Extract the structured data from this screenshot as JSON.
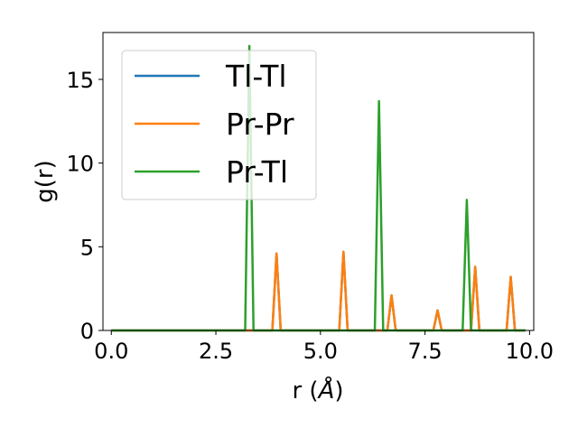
{
  "chart_data": {
    "type": "line",
    "xlabel_main": "r (",
    "xlabel_unit": "Å",
    "xlabel_close": ")",
    "ylabel": "g(r)",
    "xlim": [
      -0.2,
      10.1
    ],
    "ylim": [
      0,
      17.8
    ],
    "xticks": [
      0.0,
      2.5,
      5.0,
      7.5,
      10.0
    ],
    "xtick_labels": [
      "0.0",
      "2.5",
      "5.0",
      "7.5",
      "10.0"
    ],
    "yticks": [
      0,
      5,
      10,
      15
    ],
    "ytick_labels": [
      "0",
      "5",
      "10",
      "15"
    ],
    "legend_position": "upper-left",
    "grid": false,
    "series": [
      {
        "name": "Tl-Tl",
        "color": "#1f77b4",
        "x": [
          0.0,
          3.85,
          3.95,
          4.05,
          5.45,
          5.55,
          5.65,
          6.6,
          6.7,
          6.8,
          7.7,
          7.8,
          7.9,
          8.6,
          8.7,
          8.8,
          9.45,
          9.55,
          9.65,
          9.9
        ],
        "y": [
          0,
          0,
          4.6,
          0,
          0,
          4.7,
          0,
          0,
          2.1,
          0,
          0,
          1.2,
          0,
          0,
          3.8,
          0,
          0,
          3.2,
          0,
          0
        ]
      },
      {
        "name": "Pr-Pr",
        "color": "#ff7f0e",
        "x": [
          0.0,
          3.85,
          3.95,
          4.05,
          5.45,
          5.55,
          5.65,
          6.6,
          6.7,
          6.8,
          7.7,
          7.8,
          7.9,
          8.6,
          8.7,
          8.8,
          9.45,
          9.55,
          9.65,
          9.9
        ],
        "y": [
          0,
          0,
          4.6,
          0,
          0,
          4.7,
          0,
          0,
          2.1,
          0,
          0,
          1.2,
          0,
          0,
          3.8,
          0,
          0,
          3.2,
          0,
          0
        ]
      },
      {
        "name": "Pr-Tl",
        "color": "#2ca02c",
        "x": [
          0.0,
          3.2,
          3.3,
          3.4,
          6.3,
          6.4,
          6.5,
          8.4,
          8.5,
          8.6,
          9.9
        ],
        "y": [
          0,
          0,
          17.0,
          0,
          0,
          13.7,
          0,
          0,
          7.8,
          0,
          0
        ]
      }
    ]
  }
}
